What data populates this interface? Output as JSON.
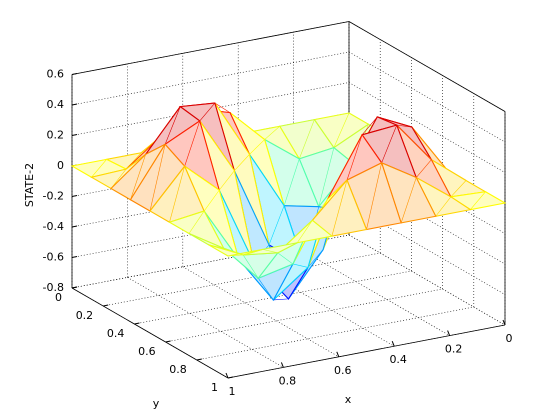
{
  "chart_data": {
    "type": "mesh",
    "xlabel": "x",
    "ylabel": "y",
    "zlabel": "STATE-2",
    "x": [
      0,
      0.125,
      0.25,
      0.375,
      0.5,
      0.625,
      0.75,
      0.875,
      1
    ],
    "y": [
      0,
      0.125,
      0.25,
      0.375,
      0.5,
      0.625,
      0.75,
      0.875,
      1
    ],
    "z": [
      [
        0,
        0,
        0,
        0,
        0,
        0,
        0,
        0,
        0
      ],
      [
        0,
        -0.11,
        -0.14,
        0.03,
        0.25,
        0.32,
        0.18,
        0.01,
        0
      ],
      [
        0,
        -0.14,
        -0.38,
        -0.33,
        0.05,
        0.43,
        0.45,
        0.18,
        0
      ],
      [
        0,
        0.03,
        -0.33,
        -0.64,
        -0.47,
        0.06,
        0.43,
        0.32,
        0
      ],
      [
        0,
        0.25,
        0.05,
        -0.47,
        -0.75,
        -0.47,
        0.05,
        0.25,
        0
      ],
      [
        0,
        0.32,
        0.43,
        0.06,
        -0.47,
        -0.64,
        -0.33,
        0.03,
        0
      ],
      [
        0,
        0.18,
        0.45,
        0.43,
        0.05,
        -0.33,
        -0.38,
        -0.14,
        0
      ],
      [
        0,
        0.01,
        0.18,
        0.32,
        0.25,
        0.03,
        -0.14,
        -0.11,
        0
      ],
      [
        0,
        0,
        0,
        0,
        0,
        0,
        0,
        0,
        0
      ]
    ],
    "colormap": "jet",
    "xlim": [
      0,
      1
    ],
    "ylim": [
      0,
      1
    ],
    "zlim": [
      -0.8,
      0.6
    ],
    "xticks": [
      0,
      0.2,
      0.4,
      0.6,
      0.8,
      1
    ],
    "yticks": [
      0,
      0.2,
      0.4,
      0.6,
      0.8,
      1
    ],
    "zticks": [
      -0.8,
      -0.6,
      -0.4,
      -0.2,
      0,
      0.2,
      0.4,
      0.6
    ],
    "grid": true
  }
}
